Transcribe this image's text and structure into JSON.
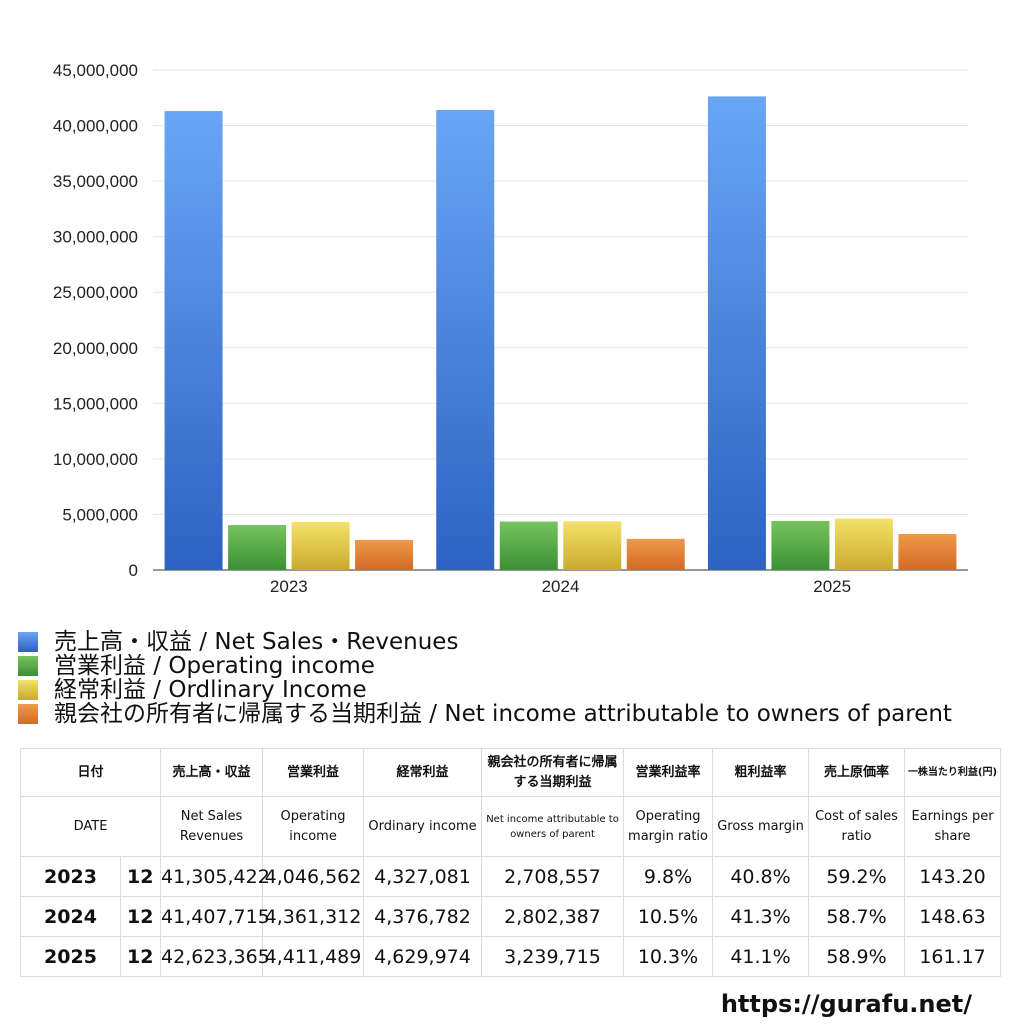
{
  "chart_data": {
    "type": "bar",
    "categories": [
      "2023",
      "2024",
      "2025"
    ],
    "series": [
      {
        "name": "売上高・収益 / Net Sales・Revenues",
        "values": [
          41305422,
          41407715,
          42623365
        ],
        "color_top": "#6aa5f5",
        "color_bottom": "#2d62c2"
      },
      {
        "name": "営業利益 / Operating income",
        "values": [
          4046562,
          4361312,
          4411489
        ],
        "color_top": "#76c45e",
        "color_bottom": "#3c8f35"
      },
      {
        "name": "経常利益 / Ordlinary Income",
        "values": [
          4327081,
          4376782,
          4629974
        ],
        "color_top": "#f3e26a",
        "color_bottom": "#c9aa2e"
      },
      {
        "name": "親会社の所有者に帰属する当期利益 / Net income attributable to owners of parent",
        "values": [
          2708557,
          2802387,
          3239715
        ],
        "color_top": "#ee9a4a",
        "color_bottom": "#d26a25"
      }
    ],
    "yticks": [
      "0",
      "5,000,000",
      "10,000,000",
      "15,000,000",
      "20,000,000",
      "25,000,000",
      "30,000,000",
      "35,000,000",
      "40,000,000",
      "45,000,000"
    ],
    "ylim": [
      0,
      45000000
    ],
    "grid": true,
    "legend_position": "bottom"
  },
  "table": {
    "header_jp": [
      "日付",
      "売上高・収益",
      "営業利益",
      "経常利益",
      "親会社の所有者に帰属する当期利益",
      "営業利益率",
      "粗利益率",
      "売上原価率",
      "一株当たり利益(円)"
    ],
    "header_en": [
      "DATE",
      "Net Sales Revenues",
      "Operating income",
      "Ordinary income",
      "Net income attributable to owners of parent",
      "Operating margin ratio",
      "Gross margin",
      "Cost of sales ratio",
      "Earnings per share"
    ],
    "rows": [
      {
        "year": "2023",
        "month": "12",
        "sales": "41,305,422",
        "op": "4,046,562",
        "ord": "4,327,081",
        "net": "2,708,557",
        "opm": "9.8%",
        "gm": "40.8%",
        "cos": "59.2%",
        "eps": "143.20"
      },
      {
        "year": "2024",
        "month": "12",
        "sales": "41,407,715",
        "op": "4,361,312",
        "ord": "4,376,782",
        "net": "2,802,387",
        "opm": "10.5%",
        "gm": "41.3%",
        "cos": "58.7%",
        "eps": "148.63"
      },
      {
        "year": "2025",
        "month": "12",
        "sales": "42,623,365",
        "op": "4,411,489",
        "ord": "4,629,974",
        "net": "3,239,715",
        "opm": "10.3%",
        "gm": "41.1%",
        "cos": "58.9%",
        "eps": "161.17"
      }
    ]
  },
  "footer": {
    "url": "https://gurafu.net/"
  }
}
